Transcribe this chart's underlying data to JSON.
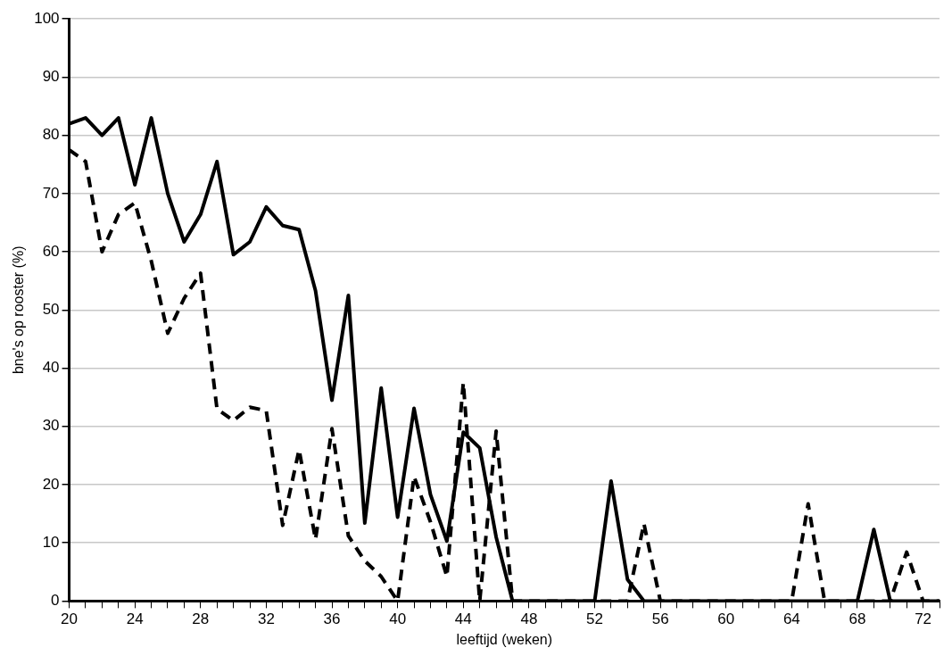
{
  "chart_data": {
    "type": "line",
    "xlabel": "leeftijd (weken)",
    "ylabel": "bne's op rooster (%)",
    "x": [
      20,
      21,
      22,
      23,
      24,
      25,
      26,
      27,
      28,
      29,
      30,
      31,
      32,
      33,
      34,
      35,
      36,
      37,
      38,
      39,
      40,
      41,
      42,
      43,
      44,
      45,
      46,
      47,
      48,
      49,
      50,
      51,
      52,
      53,
      54,
      55,
      56,
      57,
      58,
      59,
      60,
      61,
      62,
      63,
      64,
      65,
      66,
      67,
      68,
      69,
      70,
      71,
      72,
      73
    ],
    "series": [
      {
        "color": "#000000",
        "line_style": "solid",
        "values": [
          82,
          83,
          80,
          83,
          71.5,
          83,
          70,
          61.7,
          66.4,
          75.5,
          59.5,
          61.7,
          67.7,
          64.5,
          63.8,
          53.3,
          34.5,
          52.5,
          13.4,
          36.6,
          14.4,
          33.1,
          18.3,
          10.3,
          29,
          26.3,
          11,
          0,
          0,
          0,
          0,
          0,
          0,
          20.6,
          3.7,
          0,
          0,
          0,
          0,
          0,
          0,
          0,
          0,
          0,
          0,
          0,
          0,
          0,
          0,
          12.3,
          0,
          0,
          0,
          0
        ]
      },
      {
        "color": "#000000",
        "line_style": "dashed",
        "values": [
          77.5,
          75.5,
          60,
          66.4,
          68.4,
          58.4,
          46,
          52,
          56.3,
          33,
          31,
          33.3,
          32.7,
          13,
          26,
          10.6,
          29.6,
          11.2,
          6.9,
          4.2,
          0,
          21.4,
          13.6,
          4.2,
          37.5,
          0,
          29.2,
          0,
          0,
          0,
          0,
          0,
          0,
          0,
          0,
          13.3,
          0,
          0,
          0,
          0,
          0,
          0,
          0,
          0,
          0,
          16.7,
          0,
          0,
          0,
          0,
          0,
          8.4,
          0,
          0
        ]
      }
    ],
    "xlim": [
      20,
      73
    ],
    "xticks": [
      20,
      {
        "value": 21,
        "label": null
      },
      {
        "value": 22,
        "label": null
      },
      {
        "value": 23,
        "label": null
      },
      24,
      {
        "value": 25,
        "label": null
      },
      {
        "value": 26,
        "label": null
      },
      {
        "value": 27,
        "label": null
      },
      28,
      {
        "value": 29,
        "label": null
      },
      {
        "value": 30,
        "label": null
      },
      {
        "value": 31,
        "label": null
      },
      32,
      {
        "value": 33,
        "label": null
      },
      {
        "value": 34,
        "label": null
      },
      {
        "value": 35,
        "label": null
      },
      36,
      {
        "value": 37,
        "label": null
      },
      {
        "value": 38,
        "label": null
      },
      {
        "value": 39,
        "label": null
      },
      40,
      {
        "value": 41,
        "label": null
      },
      {
        "value": 42,
        "label": null
      },
      {
        "value": 43,
        "label": null
      },
      44,
      {
        "value": 45,
        "label": null
      },
      {
        "value": 46,
        "label": null
      },
      {
        "value": 47,
        "label": null
      },
      48,
      {
        "value": 49,
        "label": null
      },
      {
        "value": 50,
        "label": null
      },
      {
        "value": 51,
        "label": null
      },
      52,
      {
        "value": 53,
        "label": null
      },
      {
        "value": 54,
        "label": null
      },
      {
        "value": 55,
        "label": null
      },
      56,
      {
        "value": 57,
        "label": null
      },
      {
        "value": 58,
        "label": null
      },
      {
        "value": 59,
        "label": null
      },
      60,
      {
        "value": 61,
        "label": null
      },
      {
        "value": 62,
        "label": null
      },
      {
        "value": 63,
        "label": null
      },
      64,
      {
        "value": 65,
        "label": null
      },
      {
        "value": 66,
        "label": null
      },
      {
        "value": 67,
        "label": null
      },
      68,
      {
        "value": 69,
        "label": null
      },
      {
        "value": 70,
        "label": null
      },
      {
        "value": 71,
        "label": null
      },
      72,
      {
        "value": 73,
        "label": null
      }
    ],
    "ylim": [
      0,
      100
    ],
    "yticks": [
      0,
      10,
      20,
      30,
      40,
      50,
      60,
      70,
      80,
      90,
      100
    ],
    "grid": "y",
    "marker": "none"
  }
}
